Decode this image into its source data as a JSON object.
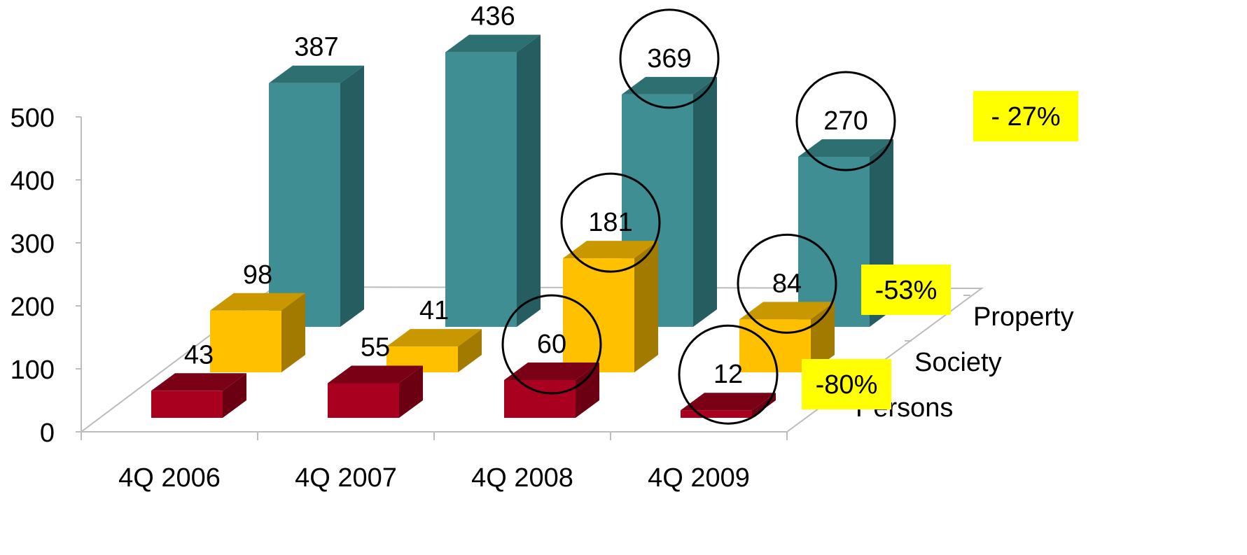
{
  "chart_data": {
    "type": "bar",
    "variant": "3d-depth",
    "title": "",
    "xlabel": "",
    "ylabel": "",
    "ylim": [
      0,
      500
    ],
    "yticks": [
      0,
      100,
      200,
      300,
      400,
      500
    ],
    "categories": [
      "4Q 2006",
      "4Q 2007",
      "4Q 2008",
      "4Q 2009"
    ],
    "series": [
      {
        "name": "Persons",
        "values": [
          43,
          55,
          60,
          12
        ],
        "color": "#a8001e",
        "top_color": "#7a0016",
        "side_color": "#6a0012"
      },
      {
        "name": "Society",
        "values": [
          98,
          41,
          181,
          84
        ],
        "color": "#ffc000",
        "top_color": "#c99800",
        "side_color": "#a37a00"
      },
      {
        "name": "Property",
        "values": [
          387,
          436,
          369,
          270
        ],
        "color": "#3e8e93",
        "top_color": "#2e6f72",
        "side_color": "#255d60"
      }
    ],
    "grid": false,
    "legend": "depth-axis-labels",
    "annotations": [
      {
        "text": "- 27%",
        "series": "Property",
        "background": "#ffff00"
      },
      {
        "text": "-53%",
        "series": "Society",
        "background": "#ffff00"
      },
      {
        "text": "-80%",
        "series": "Persons",
        "background": "#ffff00"
      }
    ],
    "circled_values": [
      {
        "series": "Property",
        "category": "4Q 2008"
      },
      {
        "series": "Property",
        "category": "4Q 2009"
      },
      {
        "series": "Society",
        "category": "4Q 2008"
      },
      {
        "series": "Society",
        "category": "4Q 2009"
      },
      {
        "series": "Persons",
        "category": "4Q 2008"
      },
      {
        "series": "Persons",
        "category": "4Q 2009"
      }
    ]
  }
}
